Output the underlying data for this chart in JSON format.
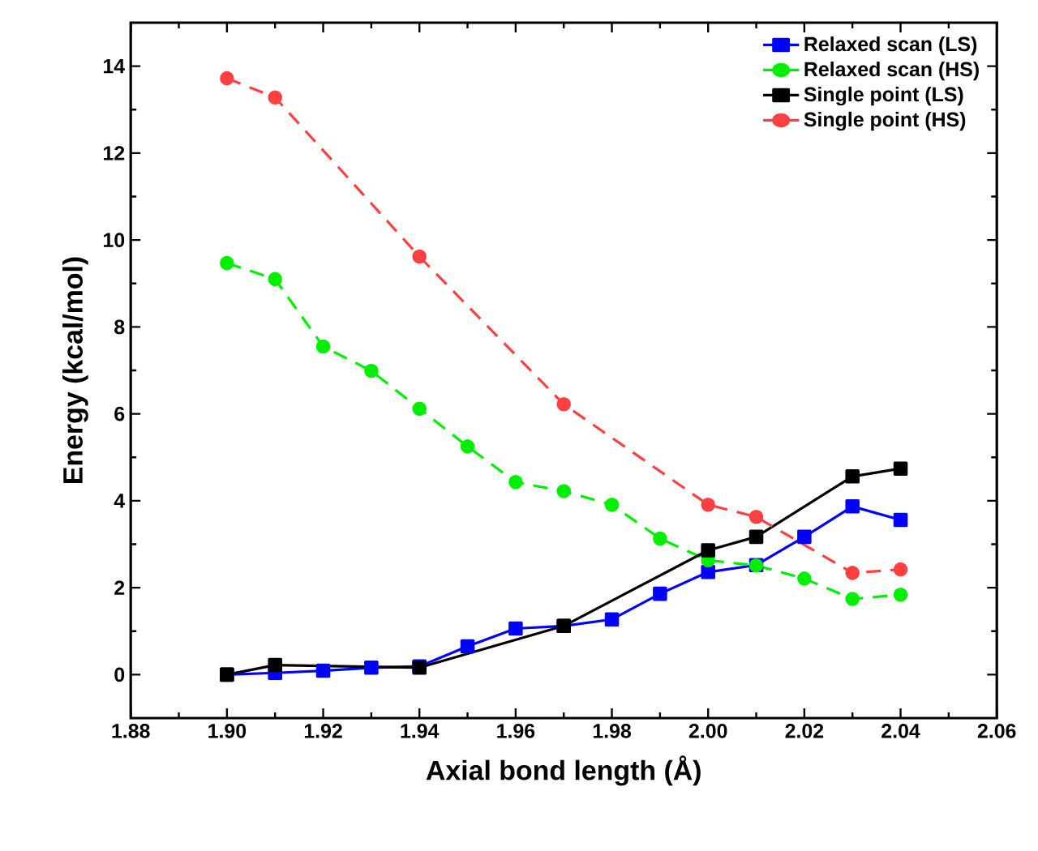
{
  "chart_data": {
    "type": "line",
    "xlabel": "Axial bond length (Å)",
    "ylabel": "Energy (kcal/mol)",
    "xlim": [
      1.88,
      2.06
    ],
    "xticks": [
      1.88,
      {
        "value": 1.9,
        "label": "1.90"
      },
      1.92,
      1.94,
      1.96,
      1.98,
      {
        "value": 2.0,
        "label": "2.00"
      },
      2.02,
      2.04,
      2.06
    ],
    "ylim": [
      -1,
      15
    ],
    "yticks": [
      0,
      2,
      4,
      6,
      8,
      10,
      12,
      14
    ],
    "legend": "top right",
    "series": [
      {
        "name": "Relaxed scan (LS)",
        "color": "#0000ff",
        "marker": "square",
        "line_style": "solid",
        "x": [
          1.9,
          1.91,
          1.92,
          1.93,
          1.94,
          1.95,
          1.96,
          1.97,
          1.98,
          1.99,
          2.0,
          2.01,
          2.02,
          2.03,
          2.04
        ],
        "values": [
          0,
          0.04,
          0.09,
          0.16,
          0.19,
          0.65,
          1.06,
          1.12,
          1.27,
          1.86,
          2.36,
          2.52,
          3.17,
          3.87,
          3.56
        ]
      },
      {
        "name": "Relaxed scan (HS)",
        "color": "#00ee00",
        "marker": "circle",
        "line_style": "dashed",
        "x": [
          1.9,
          1.91,
          1.92,
          1.93,
          1.94,
          1.95,
          1.96,
          1.97,
          1.98,
          1.99,
          2.0,
          2.01,
          2.02,
          2.03,
          2.04
        ],
        "values": [
          9.47,
          9.1,
          7.55,
          6.99,
          6.12,
          5.25,
          4.43,
          4.22,
          3.91,
          3.13,
          2.63,
          2.51,
          2.21,
          1.74,
          1.84
        ]
      },
      {
        "name": "Single point (LS)",
        "color": "#000000",
        "marker": "square",
        "line_style": "solid",
        "x": [
          1.9,
          1.91,
          1.94,
          1.97,
          2.0,
          2.01,
          2.03,
          2.04
        ],
        "values": [
          0,
          0.22,
          0.16,
          1.12,
          2.86,
          3.17,
          4.56,
          4.74
        ]
      },
      {
        "name": "Single point (HS)",
        "color": "#ff4040",
        "marker": "circle",
        "line_style": "dashed",
        "x": [
          1.9,
          1.91,
          1.94,
          1.97,
          2.0,
          2.01,
          2.03,
          2.04
        ],
        "values": [
          13.72,
          13.28,
          9.62,
          6.22,
          3.91,
          3.63,
          2.34,
          2.42
        ]
      }
    ]
  }
}
